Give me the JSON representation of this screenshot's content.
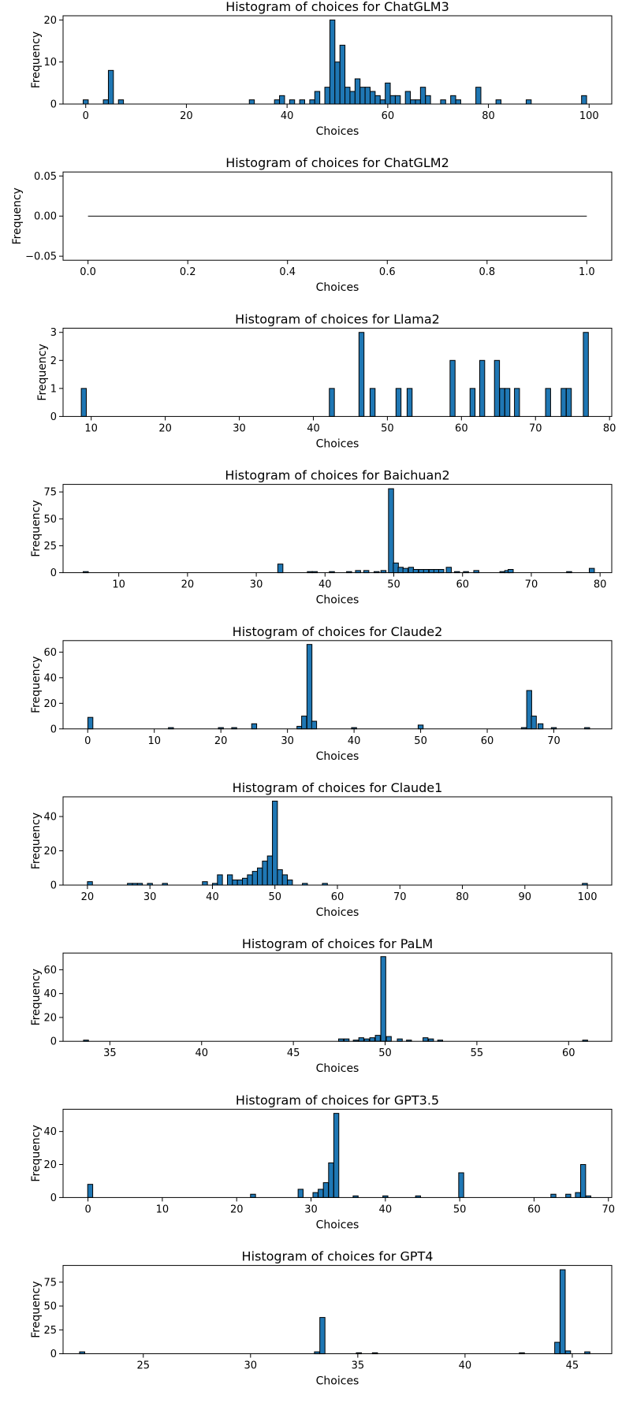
{
  "style": {
    "bar_fill": "#1f77b4",
    "bar_edge": "#000000",
    "axes_color": "#000000"
  },
  "chart_data": [
    {
      "type": "bar",
      "title": "Histogram of choices for ChatGLM3",
      "xlabel": "Choices",
      "ylabel": "Frequency",
      "xlim": [
        -4.5,
        104.5
      ],
      "ylim": [
        0,
        21
      ],
      "xticks": [
        0,
        20,
        40,
        60,
        80,
        100
      ],
      "yticks": [
        0,
        10,
        20
      ],
      "tick_labels_x": [
        "0",
        "20",
        "40",
        "60",
        "80",
        "100"
      ],
      "tick_labels_y": [
        "0",
        "10",
        "20"
      ],
      "bin_width": 1,
      "bars": [
        [
          0,
          1
        ],
        [
          4,
          1
        ],
        [
          5,
          8
        ],
        [
          7,
          1
        ],
        [
          33,
          1
        ],
        [
          38,
          1
        ],
        [
          39,
          2
        ],
        [
          41,
          1
        ],
        [
          43,
          1
        ],
        [
          45,
          1
        ],
        [
          46,
          3
        ],
        [
          48,
          4
        ],
        [
          49,
          20
        ],
        [
          50,
          10
        ],
        [
          51,
          14
        ],
        [
          52,
          4
        ],
        [
          53,
          3
        ],
        [
          54,
          6
        ],
        [
          55,
          4
        ],
        [
          56,
          4
        ],
        [
          57,
          3
        ],
        [
          58,
          2
        ],
        [
          59,
          1
        ],
        [
          60,
          5
        ],
        [
          61,
          2
        ],
        [
          62,
          2
        ],
        [
          64,
          3
        ],
        [
          65,
          1
        ],
        [
          66,
          1
        ],
        [
          67,
          4
        ],
        [
          68,
          2
        ],
        [
          71,
          1
        ],
        [
          73,
          2
        ],
        [
          74,
          1
        ],
        [
          78,
          4
        ],
        [
          82,
          1
        ],
        [
          88,
          1
        ],
        [
          99,
          2
        ]
      ]
    },
    {
      "type": "bar",
      "title": "Histogram of choices for ChatGLM2",
      "xlabel": "Choices",
      "ylabel": "Frequency",
      "xlim": [
        -0.05,
        1.05
      ],
      "ylim": [
        -0.055,
        0.055
      ],
      "xticks": [
        0,
        0.2,
        0.4,
        0.6,
        0.8,
        1.0
      ],
      "yticks": [
        -0.05,
        0,
        0.05
      ],
      "tick_labels_x": [
        "0.0",
        "0.2",
        "0.4",
        "0.6",
        "0.8",
        "1.0"
      ],
      "tick_labels_y": [
        "−0.05",
        "0.00",
        "0.05"
      ],
      "bin_width": 0.01,
      "bars": [],
      "empty_line": [
        0,
        1
      ]
    },
    {
      "type": "bar",
      "title": "Histogram of choices for Llama2",
      "xlabel": "Choices",
      "ylabel": "Frequency",
      "xlim": [
        6.2,
        80.3
      ],
      "ylim": [
        0,
        3.15
      ],
      "xticks": [
        10,
        20,
        30,
        40,
        50,
        60,
        70,
        80
      ],
      "yticks": [
        0,
        1,
        2,
        3
      ],
      "tick_labels_x": [
        "10",
        "20",
        "30",
        "40",
        "50",
        "60",
        "70",
        "80"
      ],
      "tick_labels_y": [
        "0",
        "1",
        "2",
        "3"
      ],
      "bin_width": 0.68,
      "bars": [
        [
          9,
          1
        ],
        [
          42.5,
          1
        ],
        [
          46.5,
          3
        ],
        [
          48,
          1
        ],
        [
          51.5,
          1
        ],
        [
          53,
          1
        ],
        [
          58.8,
          2
        ],
        [
          61.5,
          1
        ],
        [
          62.8,
          2
        ],
        [
          64.8,
          2
        ],
        [
          65.5,
          1
        ],
        [
          66.2,
          1
        ],
        [
          67.5,
          1
        ],
        [
          71.7,
          1
        ],
        [
          73.8,
          1
        ],
        [
          74.5,
          1
        ],
        [
          76.8,
          3
        ]
      ]
    },
    {
      "type": "bar",
      "title": "Histogram of choices for Baichuan2",
      "xlabel": "Choices",
      "ylabel": "Frequency",
      "xlim": [
        1.9,
        81.7
      ],
      "ylim": [
        0,
        82
      ],
      "xticks": [
        10,
        20,
        30,
        40,
        50,
        60,
        70,
        80
      ],
      "yticks": [
        0,
        25,
        50,
        75
      ],
      "tick_labels_x": [
        "10",
        "20",
        "30",
        "40",
        "50",
        "60",
        "70",
        "80"
      ],
      "tick_labels_y": [
        "0",
        "25",
        "50",
        "75"
      ],
      "bin_width": 0.74,
      "bars": [
        [
          5.2,
          1
        ],
        [
          33.5,
          8
        ],
        [
          37.8,
          1
        ],
        [
          38.5,
          1
        ],
        [
          41,
          1
        ],
        [
          43.5,
          1
        ],
        [
          44.8,
          2
        ],
        [
          46,
          2
        ],
        [
          47.5,
          1
        ],
        [
          48.5,
          2
        ],
        [
          49.6,
          78
        ],
        [
          50.3,
          9
        ],
        [
          51,
          5
        ],
        [
          51.7,
          4
        ],
        [
          52.5,
          5
        ],
        [
          53.2,
          3
        ],
        [
          54,
          3
        ],
        [
          54.7,
          3
        ],
        [
          55.5,
          3
        ],
        [
          56.2,
          3
        ],
        [
          56.9,
          3
        ],
        [
          58,
          5
        ],
        [
          59.2,
          1
        ],
        [
          60.5,
          1
        ],
        [
          62,
          2
        ],
        [
          65.8,
          1
        ],
        [
          66.5,
          2
        ],
        [
          67,
          3
        ],
        [
          75.5,
          1
        ],
        [
          78.8,
          4
        ]
      ]
    },
    {
      "type": "bar",
      "title": "Histogram of choices for Claude2",
      "xlabel": "Choices",
      "ylabel": "Frequency",
      "xlim": [
        -3.7,
        78.7
      ],
      "ylim": [
        0,
        69
      ],
      "xticks": [
        0,
        10,
        20,
        30,
        40,
        50,
        60,
        70
      ],
      "yticks": [
        0,
        20,
        40,
        60
      ],
      "tick_labels_x": [
        "0",
        "10",
        "20",
        "30",
        "40",
        "50",
        "60",
        "70"
      ],
      "tick_labels_y": [
        "0",
        "20",
        "40",
        "60"
      ],
      "bin_width": 0.75,
      "bars": [
        [
          0.4,
          9
        ],
        [
          12.5,
          1
        ],
        [
          20,
          1
        ],
        [
          22,
          1
        ],
        [
          25,
          4
        ],
        [
          31.8,
          2
        ],
        [
          32.5,
          10
        ],
        [
          33.3,
          66
        ],
        [
          34,
          6
        ],
        [
          40,
          1
        ],
        [
          50,
          3
        ],
        [
          65.5,
          1
        ],
        [
          66.3,
          30
        ],
        [
          67,
          10
        ],
        [
          68,
          4
        ],
        [
          70,
          1
        ],
        [
          75,
          1
        ]
      ]
    },
    {
      "type": "bar",
      "title": "Histogram of choices for Claude1",
      "xlabel": "Choices",
      "ylabel": "Frequency",
      "xlim": [
        16.1,
        103.9
      ],
      "ylim": [
        0,
        51.5
      ],
      "xticks": [
        20,
        30,
        40,
        50,
        60,
        70,
        80,
        90,
        100
      ],
      "yticks": [
        0,
        20,
        40
      ],
      "tick_labels_x": [
        "20",
        "30",
        "40",
        "50",
        "60",
        "70",
        "80",
        "90",
        "100"
      ],
      "tick_labels_y": [
        "0",
        "20",
        "40"
      ],
      "bin_width": 0.8,
      "bars": [
        [
          20.4,
          2
        ],
        [
          26.8,
          1
        ],
        [
          27.6,
          1
        ],
        [
          28.4,
          1
        ],
        [
          30,
          1
        ],
        [
          32.4,
          1
        ],
        [
          38.8,
          2
        ],
        [
          40.4,
          1
        ],
        [
          41.2,
          6
        ],
        [
          42.8,
          6
        ],
        [
          43.6,
          3
        ],
        [
          44.4,
          3
        ],
        [
          45.2,
          4
        ],
        [
          46,
          6
        ],
        [
          46.8,
          8
        ],
        [
          47.6,
          10
        ],
        [
          48.4,
          14
        ],
        [
          49.2,
          17
        ],
        [
          50,
          49
        ],
        [
          50.8,
          9
        ],
        [
          51.6,
          6
        ],
        [
          52.4,
          3
        ],
        [
          54.8,
          1
        ],
        [
          58,
          1
        ],
        [
          99.6,
          1
        ]
      ]
    },
    {
      "type": "bar",
      "title": "Histogram of choices for PaLM",
      "xlabel": "Choices",
      "ylabel": "Frequency",
      "xlim": [
        32.45,
        62.35
      ],
      "ylim": [
        0,
        74
      ],
      "xticks": [
        35,
        40,
        45,
        50,
        55,
        60
      ],
      "yticks": [
        0,
        20,
        40,
        60
      ],
      "tick_labels_x": [
        "35",
        "40",
        "45",
        "50",
        "55",
        "60"
      ],
      "tick_labels_y": [
        "0",
        "20",
        "40",
        "60"
      ],
      "bin_width": 0.27,
      "bars": [
        [
          33.7,
          1
        ],
        [
          47.6,
          2
        ],
        [
          47.9,
          2
        ],
        [
          48.4,
          1
        ],
        [
          48.7,
          3
        ],
        [
          49,
          2
        ],
        [
          49.3,
          3
        ],
        [
          49.6,
          5
        ],
        [
          49.9,
          71
        ],
        [
          50.2,
          4
        ],
        [
          50.8,
          2
        ],
        [
          51.3,
          1
        ],
        [
          52.2,
          3
        ],
        [
          52.5,
          2
        ],
        [
          53,
          1
        ],
        [
          60.9,
          1
        ]
      ]
    },
    {
      "type": "bar",
      "title": "Histogram of choices for GPT3.5",
      "xlabel": "Choices",
      "ylabel": "Frequency",
      "xlim": [
        -3.35,
        70.45
      ],
      "ylim": [
        0,
        53.5
      ],
      "xticks": [
        0,
        10,
        20,
        30,
        40,
        50,
        60,
        70
      ],
      "yticks": [
        0,
        20,
        40
      ],
      "tick_labels_x": [
        "0",
        "10",
        "20",
        "30",
        "40",
        "50",
        "60",
        "70"
      ],
      "tick_labels_y": [
        "0",
        "20",
        "40"
      ],
      "bin_width": 0.675,
      "bars": [
        [
          0.3,
          8
        ],
        [
          22.2,
          2
        ],
        [
          28.6,
          5
        ],
        [
          30.6,
          3
        ],
        [
          31.3,
          5
        ],
        [
          32,
          9
        ],
        [
          32.7,
          21
        ],
        [
          33.4,
          51
        ],
        [
          36,
          1
        ],
        [
          40,
          1
        ],
        [
          44.4,
          1
        ],
        [
          50.2,
          15
        ],
        [
          62.6,
          2
        ],
        [
          64.6,
          2
        ],
        [
          65.9,
          3
        ],
        [
          66.6,
          20
        ],
        [
          67.3,
          1
        ]
      ]
    },
    {
      "type": "bar",
      "title": "Histogram of choices for GPT4",
      "xlabel": "Choices",
      "ylabel": "Frequency",
      "xlim": [
        21.26,
        46.84
      ],
      "ylim": [
        0,
        92.5
      ],
      "xticks": [
        25,
        30,
        35,
        40,
        45
      ],
      "yticks": [
        0,
        25,
        50,
        75
      ],
      "tick_labels_x": [
        "25",
        "30",
        "35",
        "40",
        "45"
      ],
      "tick_labels_y": [
        "0",
        "25",
        "50",
        "75"
      ],
      "bin_width": 0.24,
      "bars": [
        [
          22.15,
          2
        ],
        [
          33.1,
          2
        ],
        [
          33.35,
          38
        ],
        [
          35.05,
          1
        ],
        [
          35.8,
          1
        ],
        [
          42.65,
          1
        ],
        [
          44.3,
          12
        ],
        [
          44.55,
          88
        ],
        [
          44.8,
          3
        ],
        [
          45.7,
          2
        ]
      ]
    }
  ]
}
